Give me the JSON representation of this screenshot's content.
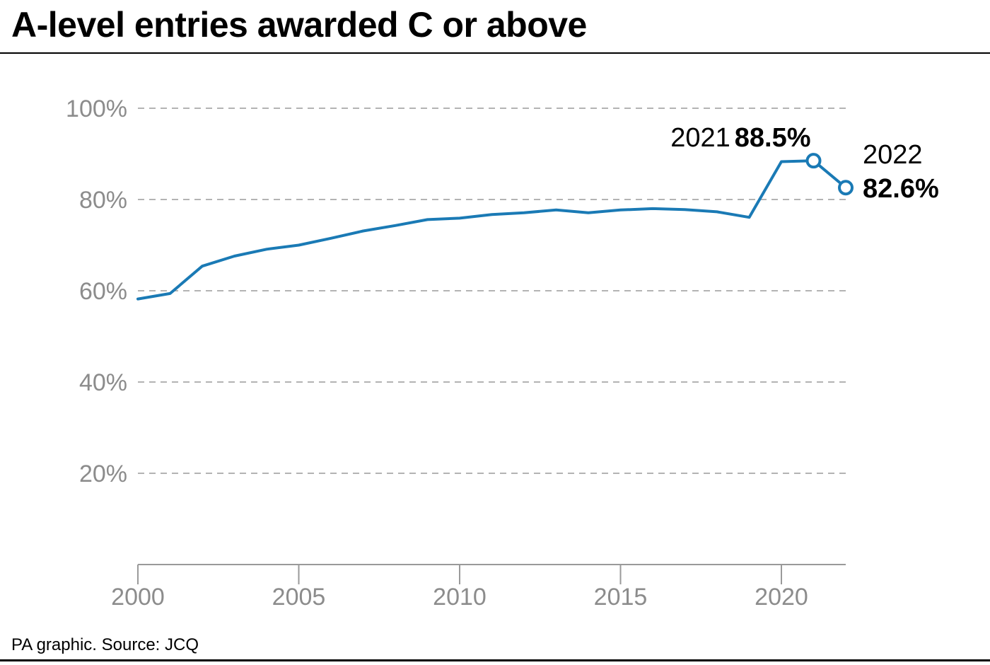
{
  "header": {
    "title": "A-level entries awarded C or above"
  },
  "footer": {
    "source": "PA graphic. Source: JCQ"
  },
  "colors": {
    "line": "#1a7ab5",
    "grid": "#9a9a9a",
    "axis": "#9a9a9a",
    "tick_text": "#8c8c8c",
    "text": "#000000"
  },
  "chart_data": {
    "type": "line",
    "title": "A-level entries awarded C or above",
    "xlabel": "",
    "ylabel": "",
    "x": [
      2000,
      2001,
      2002,
      2003,
      2004,
      2005,
      2006,
      2007,
      2008,
      2009,
      2010,
      2011,
      2012,
      2013,
      2014,
      2015,
      2016,
      2017,
      2018,
      2019,
      2020,
      2021,
      2022
    ],
    "series": [
      {
        "name": "A-level entries awarded C or above (%)",
        "values": [
          58.2,
          59.4,
          65.4,
          67.6,
          69.1,
          70.0,
          71.5,
          73.1,
          74.3,
          75.6,
          75.9,
          76.7,
          77.1,
          77.7,
          77.1,
          77.7,
          78.0,
          77.8,
          77.3,
          76.1,
          88.3,
          88.5,
          82.6
        ]
      }
    ],
    "xlim": [
      2000,
      2022
    ],
    "ylim": [
      0,
      100
    ],
    "x_ticks": [
      2000,
      2005,
      2010,
      2015,
      2020
    ],
    "x_tick_labels": [
      "2000",
      "2005",
      "2010",
      "2015",
      "2020"
    ],
    "y_ticks": [
      20,
      40,
      60,
      80,
      100
    ],
    "y_tick_labels": [
      "20%",
      "40%",
      "60%",
      "80%",
      "100%"
    ],
    "grid": true,
    "annotations": [
      {
        "year": 2021,
        "value": 88.5,
        "year_label": "2021",
        "value_label": "88.5%",
        "placement": "left"
      },
      {
        "year": 2022,
        "value": 82.6,
        "year_label": "2022",
        "value_label": "82.6%",
        "placement": "right"
      }
    ]
  }
}
